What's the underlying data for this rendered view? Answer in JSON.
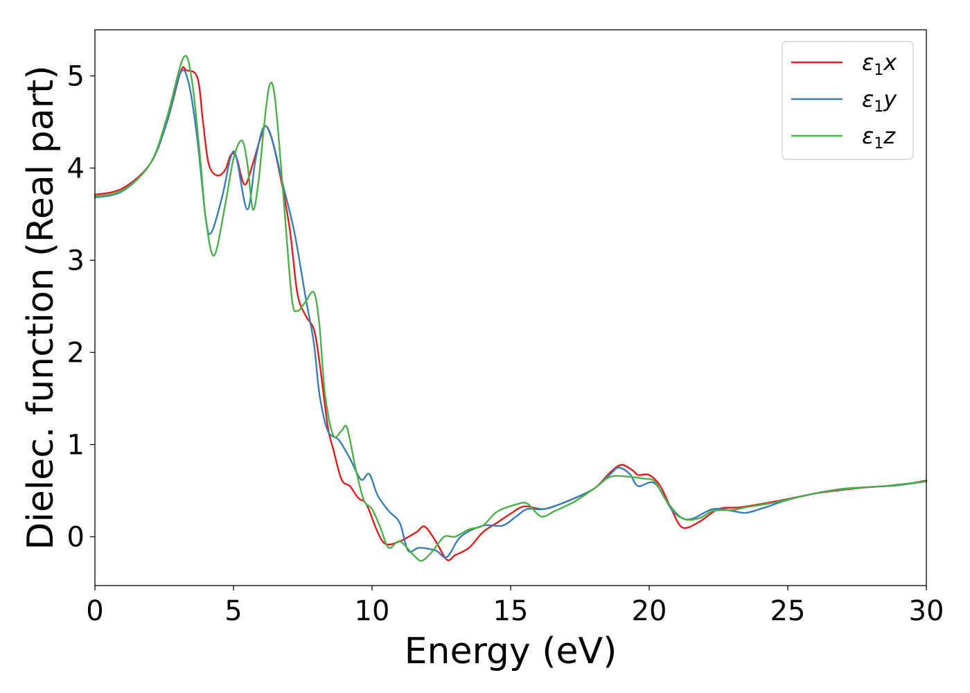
{
  "chart_data": {
    "type": "line",
    "title": "",
    "xlabel": "Energy (eV)",
    "ylabel": "Dielec. function (Real part)",
    "xlim": [
      0,
      30
    ],
    "ylim": [
      -0.53,
      5.5
    ],
    "xticks": [
      0,
      5,
      10,
      15,
      20,
      25,
      30
    ],
    "yticks": [
      0,
      1,
      2,
      3,
      4,
      5
    ],
    "grid": false,
    "legend_position": "top-right",
    "series": [
      {
        "name": "ε₁x",
        "legend_base": "ε",
        "legend_sub": "1",
        "legend_var": "x",
        "color": "#e41a1c",
        "points": [
          [
            0,
            3.71
          ],
          [
            1,
            3.78
          ],
          [
            2,
            4.05
          ],
          [
            2.6,
            4.5
          ],
          [
            3.1,
            5.05
          ],
          [
            3.3,
            5.06
          ],
          [
            3.7,
            4.98
          ],
          [
            3.9,
            4.5
          ],
          [
            4.1,
            4.05
          ],
          [
            4.4,
            3.92
          ],
          [
            4.7,
            3.98
          ],
          [
            4.9,
            4.14
          ],
          [
            5.1,
            4.12
          ],
          [
            5.4,
            3.82
          ],
          [
            5.7,
            4.05
          ],
          [
            6.0,
            4.35
          ],
          [
            6.2,
            4.45
          ],
          [
            6.5,
            4.18
          ],
          [
            7.0,
            3.4
          ],
          [
            7.3,
            2.65
          ],
          [
            7.6,
            2.4
          ],
          [
            7.9,
            2.25
          ],
          [
            8.1,
            1.9
          ],
          [
            8.4,
            1.2
          ],
          [
            8.6,
            0.95
          ],
          [
            8.9,
            0.62
          ],
          [
            9.2,
            0.55
          ],
          [
            9.5,
            0.42
          ],
          [
            9.8,
            0.35
          ],
          [
            10.2,
            0.05
          ],
          [
            10.5,
            -0.08
          ],
          [
            11,
            -0.05
          ],
          [
            11.6,
            0.05
          ],
          [
            11.9,
            0.11
          ],
          [
            12.3,
            -0.05
          ],
          [
            12.7,
            -0.25
          ],
          [
            13.0,
            -0.2
          ],
          [
            13.5,
            -0.12
          ],
          [
            14,
            0.05
          ],
          [
            14.5,
            0.15
          ],
          [
            15,
            0.25
          ],
          [
            15.5,
            0.33
          ],
          [
            16.2,
            0.3
          ],
          [
            17,
            0.38
          ],
          [
            18,
            0.52
          ],
          [
            18.6,
            0.7
          ],
          [
            19.0,
            0.78
          ],
          [
            19.4,
            0.72
          ],
          [
            19.6,
            0.67
          ],
          [
            20.0,
            0.67
          ],
          [
            20.4,
            0.55
          ],
          [
            20.8,
            0.3
          ],
          [
            21.2,
            0.1
          ],
          [
            21.8,
            0.16
          ],
          [
            22.5,
            0.3
          ],
          [
            23.3,
            0.32
          ],
          [
            24.5,
            0.38
          ],
          [
            26,
            0.47
          ],
          [
            27,
            0.51
          ],
          [
            28,
            0.54
          ],
          [
            29,
            0.56
          ],
          [
            30,
            0.61
          ]
        ]
      },
      {
        "name": "ε₁y",
        "legend_base": "ε",
        "legend_sub": "1",
        "legend_var": "y",
        "color": "#377eb8",
        "points": [
          [
            0,
            3.68
          ],
          [
            1,
            3.75
          ],
          [
            2,
            4.05
          ],
          [
            2.6,
            4.5
          ],
          [
            3.1,
            5.04
          ],
          [
            3.4,
            4.9
          ],
          [
            3.7,
            4.3
          ],
          [
            4.0,
            3.45
          ],
          [
            4.2,
            3.3
          ],
          [
            4.6,
            3.7
          ],
          [
            4.9,
            4.12
          ],
          [
            5.1,
            4.12
          ],
          [
            5.5,
            3.55
          ],
          [
            5.8,
            4.1
          ],
          [
            6.1,
            4.45
          ],
          [
            6.4,
            4.3
          ],
          [
            6.8,
            3.8
          ],
          [
            7.2,
            3.3
          ],
          [
            7.6,
            2.6
          ],
          [
            7.9,
            2.1
          ],
          [
            8.1,
            1.55
          ],
          [
            8.4,
            1.15
          ],
          [
            8.8,
            1.05
          ],
          [
            9.2,
            0.85
          ],
          [
            9.6,
            0.62
          ],
          [
            9.9,
            0.68
          ],
          [
            10.2,
            0.45
          ],
          [
            10.6,
            0.28
          ],
          [
            11.0,
            0.15
          ],
          [
            11.3,
            -0.15
          ],
          [
            11.7,
            -0.12
          ],
          [
            12.3,
            -0.15
          ],
          [
            12.7,
            -0.22
          ],
          [
            13.2,
            0.0
          ],
          [
            14,
            0.12
          ],
          [
            14.7,
            0.12
          ],
          [
            15.2,
            0.22
          ],
          [
            15.6,
            0.3
          ],
          [
            16.2,
            0.3
          ],
          [
            17,
            0.38
          ],
          [
            18,
            0.52
          ],
          [
            18.6,
            0.68
          ],
          [
            18.9,
            0.75
          ],
          [
            19.3,
            0.68
          ],
          [
            19.6,
            0.55
          ],
          [
            20.2,
            0.58
          ],
          [
            20.8,
            0.3
          ],
          [
            21.2,
            0.2
          ],
          [
            21.6,
            0.2
          ],
          [
            22.3,
            0.3
          ],
          [
            23,
            0.28
          ],
          [
            23.5,
            0.26
          ],
          [
            24.2,
            0.32
          ],
          [
            25,
            0.4
          ],
          [
            26,
            0.47
          ],
          [
            27,
            0.52
          ],
          [
            28,
            0.54
          ],
          [
            29,
            0.56
          ],
          [
            30,
            0.6
          ]
        ]
      },
      {
        "name": "ε₁z",
        "legend_base": "ε",
        "legend_sub": "1",
        "legend_var": "z",
        "color": "#4daf4a",
        "points": [
          [
            0,
            3.69
          ],
          [
            1,
            3.76
          ],
          [
            2,
            4.05
          ],
          [
            2.6,
            4.55
          ],
          [
            3.2,
            5.2
          ],
          [
            3.5,
            4.95
          ],
          [
            3.8,
            4.1
          ],
          [
            4.0,
            3.45
          ],
          [
            4.3,
            3.05
          ],
          [
            4.7,
            3.6
          ],
          [
            5.0,
            4.1
          ],
          [
            5.3,
            4.3
          ],
          [
            5.5,
            4.05
          ],
          [
            5.7,
            3.55
          ],
          [
            5.9,
            3.85
          ],
          [
            6.1,
            4.45
          ],
          [
            6.3,
            4.9
          ],
          [
            6.5,
            4.75
          ],
          [
            6.8,
            3.7
          ],
          [
            7.1,
            2.6
          ],
          [
            7.3,
            2.45
          ],
          [
            7.6,
            2.55
          ],
          [
            7.9,
            2.65
          ],
          [
            8.1,
            2.3
          ],
          [
            8.3,
            1.55
          ],
          [
            8.6,
            1.1
          ],
          [
            8.9,
            1.15
          ],
          [
            9.1,
            1.18
          ],
          [
            9.4,
            0.75
          ],
          [
            9.7,
            0.4
          ],
          [
            10.0,
            0.3
          ],
          [
            10.3,
            0.1
          ],
          [
            10.6,
            -0.12
          ],
          [
            11.0,
            -0.05
          ],
          [
            11.5,
            -0.2
          ],
          [
            11.8,
            -0.26
          ],
          [
            12.2,
            -0.15
          ],
          [
            12.6,
            0.0
          ],
          [
            13,
            0.0
          ],
          [
            13.5,
            0.08
          ],
          [
            14,
            0.12
          ],
          [
            14.5,
            0.27
          ],
          [
            15.2,
            0.35
          ],
          [
            15.6,
            0.36
          ],
          [
            16.1,
            0.22
          ],
          [
            16.6,
            0.28
          ],
          [
            17.3,
            0.38
          ],
          [
            18,
            0.52
          ],
          [
            18.6,
            0.65
          ],
          [
            19.3,
            0.65
          ],
          [
            19.8,
            0.63
          ],
          [
            20.2,
            0.6
          ],
          [
            20.6,
            0.4
          ],
          [
            21.2,
            0.2
          ],
          [
            21.8,
            0.2
          ],
          [
            22.3,
            0.28
          ],
          [
            23,
            0.29
          ],
          [
            23.5,
            0.32
          ],
          [
            24.5,
            0.37
          ],
          [
            25.5,
            0.44
          ],
          [
            26.5,
            0.5
          ],
          [
            27.5,
            0.53
          ],
          [
            28.5,
            0.55
          ],
          [
            30,
            0.6
          ]
        ]
      }
    ]
  }
}
